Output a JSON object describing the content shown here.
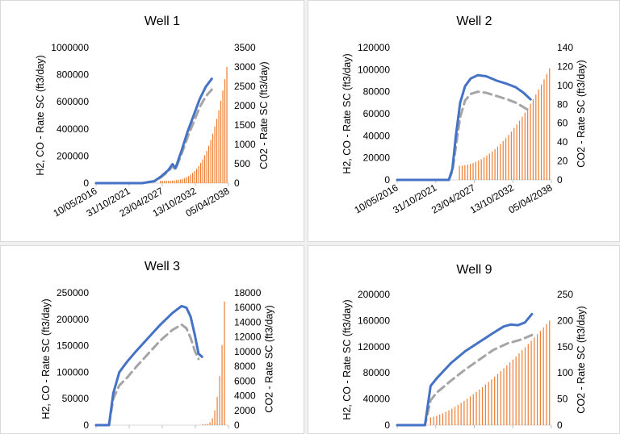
{
  "colors": {
    "h2": "#4472c4",
    "co": "#a5a5a5",
    "co2": "#ed7d31"
  },
  "chart_data": [
    {
      "type": "line",
      "title": "Well 1",
      "ylabel": "H2, CO - Rate SC (ft3/day)",
      "y2label": "CO2 - Rate SC (ft3/day)",
      "x_ticks": [
        "10/05/2016",
        "31/10/2021",
        "23/04/2027",
        "13/10/2032",
        "05/04/2038"
      ],
      "xlim": [
        "2016-05-10",
        "2038-04-05"
      ],
      "ylim": [
        0,
        1000000
      ],
      "y_ticks": [
        0,
        200000,
        400000,
        600000,
        800000,
        1000000
      ],
      "y2lim": [
        0,
        3500
      ],
      "y2_ticks": [
        0,
        500,
        1000,
        1500,
        2000,
        2500,
        3000,
        3500
      ],
      "series": [
        {
          "key": "h2",
          "style": "solid",
          "axis": "left",
          "x": [
            2016.36,
            2024.0,
            2026.0,
            2027.0,
            2028.3,
            2029.0,
            2029.5,
            2030.5,
            2031.5,
            2032.5,
            2033.5,
            2034.5,
            2035.5
          ],
          "y": [
            0,
            0,
            15000,
            45000,
            95000,
            140000,
            110000,
            240000,
            380000,
            500000,
            620000,
            710000,
            770000
          ]
        },
        {
          "key": "co",
          "style": "dashed",
          "axis": "left",
          "x": [
            2016.36,
            2024.0,
            2026.0,
            2027.0,
            2028.3,
            2029.0,
            2029.5,
            2030.5,
            2031.5,
            2032.5,
            2033.5,
            2034.5,
            2035.5
          ],
          "y": [
            0,
            0,
            13000,
            40000,
            85000,
            125000,
            100000,
            215000,
            340000,
            450000,
            560000,
            640000,
            690000
          ]
        },
        {
          "key": "co2",
          "style": "bars",
          "axis": "right",
          "x_start": 2027.0,
          "x_end": 2038.0,
          "count": 34,
          "y_start": 60,
          "y_end": 3000,
          "growth": 1.35
        }
      ]
    },
    {
      "type": "line",
      "title": "Well 2",
      "ylabel": "H2, CO - Rate SC (ft3/day)",
      "y2label": "CO2 - Rate SC (ft3/day)",
      "x_ticks": [
        "10/05/2016",
        "31/10/2021",
        "23/04/2027",
        "13/10/2032",
        "05/04/2038"
      ],
      "xlim": [
        "2016-05-10",
        "2038-04-05"
      ],
      "ylim": [
        0,
        120000
      ],
      "y_ticks": [
        0,
        20000,
        40000,
        60000,
        80000,
        100000,
        120000
      ],
      "y2lim": [
        0,
        140
      ],
      "y2_ticks": [
        0,
        20,
        40,
        60,
        80,
        100,
        120,
        140
      ],
      "series": [
        {
          "key": "h2",
          "style": "solid",
          "axis": "left",
          "x": [
            2016.36,
            2023.7,
            2024.2,
            2024.7,
            2025.3,
            2026.0,
            2026.8,
            2027.8,
            2029.0,
            2030.5,
            2032.0,
            2033.2,
            2034.3,
            2035.3
          ],
          "y": [
            0,
            0,
            10000,
            40000,
            70000,
            85000,
            92000,
            95000,
            94000,
            90000,
            87000,
            84000,
            79000,
            73000
          ]
        },
        {
          "key": "co",
          "style": "dashed",
          "axis": "left",
          "x": [
            2016.36,
            2023.7,
            2024.2,
            2024.7,
            2025.3,
            2026.0,
            2026.8,
            2027.8,
            2029.0,
            2030.5,
            2032.0,
            2033.2,
            2034.3,
            2035.3
          ],
          "y": [
            0,
            0,
            8000,
            30000,
            57000,
            72000,
            78000,
            80000,
            79000,
            76000,
            73000,
            70000,
            66000,
            62000
          ]
        },
        {
          "key": "co2",
          "style": "bars",
          "axis": "right",
          "x_start": 2025.2,
          "x_end": 2038.0,
          "count": 34,
          "y_start": 15,
          "y_end": 118,
          "growth": 0.45
        }
      ]
    },
    {
      "type": "line",
      "title": "Well 3",
      "ylabel": "H2, CO - Rate SC (ft3/day)",
      "y2label": "CO2 - Rate SC (ft3/day)",
      "x_ticks": [],
      "xlim": [
        "2016-05-10",
        "2038-04-05"
      ],
      "ylim": [
        0,
        250000
      ],
      "y_ticks": [
        0,
        50000,
        100000,
        150000,
        200000,
        250000
      ],
      "y2lim": [
        0,
        18000
      ],
      "y2_ticks": [
        0,
        2000,
        4000,
        6000,
        8000,
        10000,
        12000,
        14000,
        16000,
        18000
      ],
      "series": [
        {
          "key": "h2",
          "style": "solid",
          "axis": "left",
          "x": [
            2016.36,
            2018.5,
            2019.2,
            2020.2,
            2021.5,
            2023.0,
            2025.0,
            2027.0,
            2029.0,
            2030.5,
            2031.3,
            2032.0,
            2032.7,
            2033.3,
            2033.9
          ],
          "y": [
            0,
            0,
            60000,
            100000,
            120000,
            140000,
            165000,
            190000,
            212000,
            225000,
            222000,
            205000,
            170000,
            135000,
            129000
          ]
        },
        {
          "key": "co",
          "style": "dashed",
          "axis": "left",
          "x": [
            2016.36,
            2018.5,
            2019.2,
            2020.2,
            2021.5,
            2023.0,
            2025.0,
            2027.0,
            2029.0,
            2030.5,
            2031.3,
            2032.0,
            2032.7,
            2033.3
          ],
          "y": [
            0,
            0,
            50000,
            75000,
            90000,
            110000,
            135000,
            160000,
            180000,
            190000,
            183000,
            165000,
            140000,
            125000
          ]
        },
        {
          "key": "co2",
          "style": "bars",
          "axis": "right",
          "x_start": 2034.0,
          "x_end": 2037.6,
          "count": 10,
          "y_start": 100,
          "y_end": 16800,
          "growth": 1.35
        }
      ]
    },
    {
      "type": "line",
      "title": "Well 9",
      "ylabel": "H2, CO - Rate SC (ft3/day)",
      "y2label": "CO2 - Rate SC (ft3/day)",
      "x_ticks": [],
      "xlim": [
        "2016-05-10",
        "2038-04-05"
      ],
      "ylim": [
        0,
        200000
      ],
      "y_ticks": [
        0,
        40000,
        80000,
        120000,
        160000,
        200000
      ],
      "y2lim": [
        0,
        250
      ],
      "y2_ticks": [
        0,
        50,
        100,
        150,
        200,
        250
      ],
      "series": [
        {
          "key": "h2",
          "style": "solid",
          "axis": "left",
          "x": [
            2016.36,
            2020.3,
            2021.1,
            2022.0,
            2024.0,
            2026.0,
            2028.0,
            2030.0,
            2031.5,
            2032.5,
            2033.5,
            2034.5,
            2035.5
          ],
          "y": [
            0,
            0,
            60000,
            72000,
            95000,
            113000,
            127000,
            141000,
            151000,
            154000,
            153000,
            157000,
            170000
          ]
        },
        {
          "key": "co",
          "style": "dashed",
          "axis": "left",
          "x": [
            2016.36,
            2020.3,
            2021.1,
            2022.0,
            2024.0,
            2026.0,
            2028.0,
            2030.0,
            2032.0,
            2034.0,
            2035.5
          ],
          "y": [
            0,
            0,
            38000,
            50000,
            68000,
            85000,
            100000,
            115000,
            125000,
            131000,
            138000
          ]
        },
        {
          "key": "co2",
          "style": "bars",
          "axis": "right",
          "x_start": 2021.1,
          "x_end": 2038.0,
          "count": 40,
          "y_start": 15,
          "y_end": 200,
          "growth": 0.2
        }
      ]
    }
  ]
}
